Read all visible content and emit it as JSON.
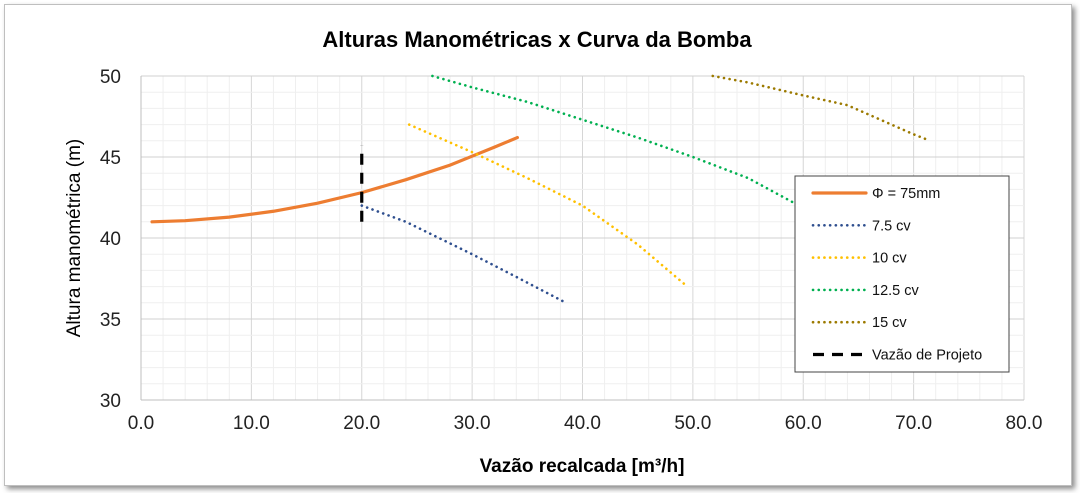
{
  "chart_data": {
    "type": "line",
    "title": "Alturas Manométricas x Curva da Bomba",
    "xlabel": "Vazão recalcada [m³/h]",
    "ylabel": "Altura manométrica (m)",
    "xlim": [
      0,
      80
    ],
    "ylim": [
      30,
      50
    ],
    "x_ticks": [
      "0.0",
      "10.0",
      "20.0",
      "30.0",
      "40.0",
      "50.0",
      "60.0",
      "70.0",
      "80.0"
    ],
    "y_ticks": [
      "30",
      "35",
      "40",
      "45",
      "50"
    ],
    "grid": true,
    "legend_position": "right",
    "series": [
      {
        "name": "Φ = 75mm",
        "color": "#ED7D31",
        "style": "solid",
        "x": [
          1,
          4,
          8,
          12,
          16,
          20,
          24,
          28,
          30,
          32,
          34.1
        ],
        "y": [
          41.0,
          41.07,
          41.29,
          41.65,
          42.15,
          42.8,
          43.6,
          44.5,
          45.05,
          45.6,
          46.2
        ]
      },
      {
        "name": "7.5 cv",
        "color": "#2F4F8F",
        "style": "dotted",
        "x": [
          20,
          24,
          30,
          34,
          38.5
        ],
        "y": [
          42.0,
          41.0,
          39.0,
          37.6,
          36.0
        ]
      },
      {
        "name": "10 cv",
        "color": "#FFC000",
        "style": "dotted",
        "x": [
          24.3,
          30,
          35,
          40,
          45,
          49.5
        ],
        "y": [
          47.0,
          45.3,
          43.7,
          42.0,
          39.6,
          37.0
        ]
      },
      {
        "name": "12.5 cv",
        "color": "#00B050",
        "style": "dotted",
        "x": [
          26.4,
          30,
          35,
          40,
          45,
          50,
          55,
          58.8,
          61
        ],
        "y": [
          50.0,
          49.3,
          48.4,
          47.3,
          46.2,
          45.0,
          43.7,
          42.3,
          41.5
        ]
      },
      {
        "name": "15 cv",
        "color": "#9C7A00",
        "style": "dotted",
        "x": [
          51.8,
          55,
          60,
          64,
          66,
          68,
          70,
          71.5
        ],
        "y": [
          50.0,
          49.6,
          48.8,
          48.2,
          47.6,
          47.0,
          46.4,
          46.0
        ]
      },
      {
        "name": "Vazão de Projeto",
        "color": "#000000",
        "style": "dashed",
        "x": [
          20,
          20
        ],
        "y": [
          41.0,
          45.7
        ]
      }
    ]
  }
}
